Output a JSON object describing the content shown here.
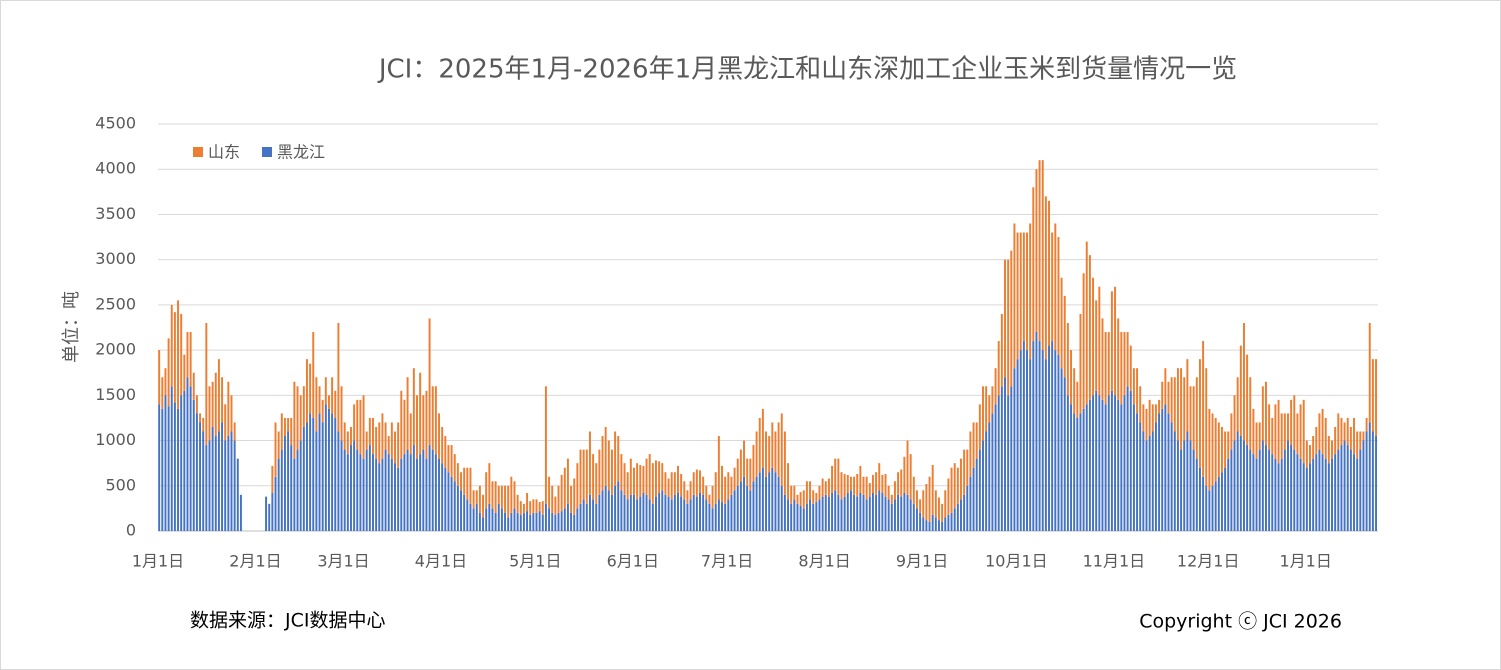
{
  "chart_data": {
    "type": "stacked-bar",
    "title": "JCI：2025年1月-2026年1月黑龙江和山东深加工企业玉米到货量情况一览",
    "y_label": "单位：吨",
    "source": "数据来源：JCI数据中心",
    "copyright": "Copyright ⓒ JCI 2026",
    "ylim": [
      0,
      4500
    ],
    "yticks": [
      0,
      500,
      1000,
      1500,
      2000,
      2500,
      3000,
      3500,
      4000,
      4500
    ],
    "grid": true,
    "legend": "top-left",
    "categories": [
      "1月1日",
      null,
      null,
      null,
      null,
      null,
      null,
      null,
      null,
      null,
      null,
      null,
      null,
      null,
      null,
      null,
      null,
      null,
      null,
      null,
      null,
      null,
      null,
      null,
      null,
      null,
      null,
      null,
      null,
      null,
      null,
      "2月1日",
      null,
      null,
      null,
      null,
      null,
      null,
      null,
      null,
      null,
      null,
      null,
      null,
      null,
      null,
      null,
      null,
      null,
      null,
      null,
      null,
      null,
      null,
      null,
      null,
      null,
      null,
      null,
      "3月1日",
      null,
      null,
      null,
      null,
      null,
      null,
      null,
      null,
      null,
      null,
      null,
      null,
      null,
      null,
      null,
      null,
      null,
      null,
      null,
      null,
      null,
      null,
      null,
      null,
      null,
      null,
      null,
      null,
      null,
      null,
      "4月1日",
      null,
      null,
      null,
      null,
      null,
      null,
      null,
      null,
      null,
      null,
      null,
      null,
      null,
      null,
      null,
      null,
      null,
      null,
      null,
      null,
      null,
      null,
      null,
      null,
      null,
      null,
      null,
      null,
      null,
      "5月1日",
      null,
      null,
      null,
      null,
      null,
      null,
      null,
      null,
      null,
      null,
      null,
      null,
      null,
      null,
      null,
      null,
      null,
      null,
      null,
      null,
      null,
      null,
      null,
      null,
      null,
      null,
      null,
      null,
      null,
      null,
      "6月1日",
      null,
      null,
      null,
      null,
      null,
      null,
      null,
      null,
      null,
      null,
      null,
      null,
      null,
      null,
      null,
      null,
      null,
      null,
      null,
      null,
      null,
      null,
      null,
      null,
      null,
      null,
      null,
      null,
      null,
      "7月1日",
      null,
      null,
      null,
      null,
      null,
      null,
      null,
      null,
      null,
      null,
      null,
      null,
      null,
      null,
      null,
      null,
      null,
      null,
      null,
      null,
      null,
      null,
      null,
      null,
      null,
      null,
      null,
      null,
      null,
      null,
      "8月1日",
      null,
      null,
      null,
      null,
      null,
      null,
      null,
      null,
      null,
      null,
      null,
      null,
      null,
      null,
      null,
      null,
      null,
      null,
      null,
      null,
      null,
      null,
      null,
      null,
      null,
      null,
      null,
      null,
      null,
      null,
      "9月1日",
      null,
      null,
      null,
      null,
      null,
      null,
      null,
      null,
      null,
      null,
      null,
      null,
      null,
      null,
      null,
      null,
      null,
      null,
      null,
      null,
      null,
      null,
      null,
      null,
      null,
      null,
      null,
      null,
      null,
      "10月1日",
      null,
      null,
      null,
      null,
      null,
      null,
      null,
      null,
      null,
      null,
      null,
      null,
      null,
      null,
      null,
      null,
      null,
      null,
      null,
      null,
      null,
      null,
      null,
      null,
      null,
      null,
      null,
      null,
      null,
      null,
      "11月1日",
      null,
      null,
      null,
      null,
      null,
      null,
      null,
      null,
      null,
      null,
      null,
      null,
      null,
      null,
      null,
      null,
      null,
      null,
      null,
      null,
      null,
      null,
      null,
      null,
      null,
      null,
      null,
      null,
      null,
      "12月1日",
      null,
      null,
      null,
      null,
      null,
      null,
      null,
      null,
      null,
      null,
      null,
      null,
      null,
      null,
      null,
      null,
      null,
      null,
      null,
      null,
      null,
      null,
      null,
      null,
      null,
      null,
      null,
      null,
      null,
      null,
      "1月1日",
      null,
      null,
      null,
      null,
      null,
      null,
      null,
      null,
      null,
      null,
      null,
      null,
      null,
      null,
      null,
      null,
      null,
      null,
      null,
      null,
      null,
      null
    ],
    "series": [
      {
        "name": "黑龙江",
        "color": "#4472c4",
        "values": [
          1400,
          1350,
          1500,
          1380,
          1600,
          1420,
          1350,
          1500,
          1550,
          1700,
          1600,
          1450,
          1300,
          1200,
          1100,
          950,
          1000,
          1150,
          1050,
          1100,
          1200,
          1000,
          1050,
          1100,
          1000,
          800,
          400,
          0,
          0,
          0,
          0,
          0,
          0,
          0,
          380,
          300,
          420,
          600,
          800,
          900,
          1050,
          1100,
          950,
          800,
          900,
          1000,
          1150,
          1200,
          1300,
          1250,
          1100,
          1300,
          1200,
          1400,
          1350,
          1300,
          1250,
          1100,
          1000,
          900,
          850,
          950,
          1000,
          900,
          850,
          800,
          900,
          950,
          850,
          800,
          750,
          800,
          900,
          850,
          800,
          750,
          700,
          800,
          850,
          900,
          850,
          950,
          800,
          850,
          900,
          800,
          950,
          900,
          850,
          800,
          750,
          700,
          650,
          600,
          550,
          500,
          450,
          400,
          350,
          300,
          250,
          300,
          200,
          150,
          250,
          300,
          250,
          200,
          300,
          250,
          200,
          150,
          200,
          250,
          200,
          180,
          200,
          220,
          180,
          200,
          200,
          220,
          180,
          300,
          250,
          200,
          180,
          200,
          220,
          250,
          300,
          200,
          180,
          250,
          300,
          350,
          300,
          400,
          350,
          300,
          400,
          450,
          500,
          450,
          400,
          500,
          550,
          450,
          400,
          350,
          400,
          400,
          350,
          380,
          420,
          400,
          350,
          300,
          380,
          420,
          450,
          400,
          380,
          350,
          400,
          420,
          380,
          350,
          300,
          350,
          400,
          380,
          420,
          400,
          350,
          300,
          250,
          300,
          350,
          320,
          300,
          350,
          400,
          450,
          500,
          550,
          600,
          500,
          450,
          550,
          600,
          650,
          700,
          600,
          650,
          700,
          650,
          600,
          500,
          400,
          350,
          300,
          350,
          300,
          280,
          250,
          300,
          350,
          300,
          320,
          350,
          380,
          400,
          380,
          420,
          450,
          400,
          350,
          380,
          420,
          450,
          400,
          380,
          420,
          400,
          350,
          380,
          420,
          400,
          450,
          420,
          380,
          350,
          300,
          350,
          400,
          380,
          420,
          400,
          350,
          300,
          250,
          200,
          150,
          120,
          100,
          180,
          150,
          120,
          100,
          150,
          180,
          200,
          250,
          300,
          350,
          400,
          500,
          600,
          700,
          800,
          900,
          1000,
          1100,
          1200,
          1300,
          1400,
          1500,
          1600,
          1700,
          1500,
          1600,
          1800,
          1900,
          2000,
          2100,
          2000,
          1900,
          2100,
          2200,
          2100,
          2000,
          1900,
          2050,
          2100,
          2000,
          1950,
          1800,
          1700,
          1500,
          1400,
          1300,
          1250,
          1300,
          1350,
          1400,
          1450,
          1500,
          1550,
          1500,
          1450,
          1400,
          1500,
          1550,
          1500,
          1450,
          1400,
          1500,
          1600,
          1550,
          1400,
          1300,
          1200,
          1100,
          1000,
          1050,
          1100,
          1200,
          1300,
          1350,
          1400,
          1300,
          1200,
          1100,
          1000,
          900,
          1000,
          1100,
          1000,
          900,
          800,
          700,
          600,
          500,
          450,
          500,
          550,
          600,
          650,
          700,
          800,
          900,
          1000,
          1100,
          1050,
          1000,
          950,
          900,
          850,
          800,
          900,
          1000,
          950,
          900,
          850,
          800,
          750,
          800,
          900,
          1000,
          950,
          900,
          850,
          800,
          750,
          700,
          750,
          800,
          850,
          900,
          850,
          800,
          750,
          800,
          850,
          900,
          950,
          1000,
          950,
          900,
          850,
          800,
          900,
          1000,
          1100,
          1200,
          1100,
          1050
        ]
      },
      {
        "name": "山东",
        "color": "#ed7d31",
        "values": [
          600,
          350,
          300,
          750,
          900,
          1000,
          1200,
          900,
          400,
          500,
          600,
          300,
          200,
          100,
          150,
          1350,
          600,
          500,
          700,
          800,
          500,
          400,
          600,
          400,
          200,
          0,
          0,
          0,
          0,
          0,
          0,
          0,
          0,
          0,
          0,
          0,
          300,
          600,
          300,
          400,
          200,
          150,
          300,
          850,
          700,
          500,
          450,
          700,
          550,
          950,
          600,
          300,
          250,
          300,
          150,
          400,
          300,
          1200,
          600,
          300,
          250,
          200,
          400,
          550,
          600,
          700,
          200,
          300,
          400,
          350,
          450,
          500,
          300,
          200,
          400,
          350,
          500,
          750,
          600,
          800,
          450,
          850,
          700,
          900,
          600,
          750,
          1400,
          700,
          750,
          500,
          400,
          350,
          300,
          350,
          300,
          250,
          200,
          300,
          350,
          400,
          200,
          150,
          300,
          250,
          400,
          450,
          300,
          350,
          200,
          250,
          300,
          350,
          400,
          300,
          200,
          150,
          100,
          200,
          150,
          150,
          150,
          100,
          150,
          1300,
          350,
          300,
          200,
          300,
          400,
          450,
          500,
          300,
          400,
          500,
          600,
          550,
          600,
          700,
          500,
          450,
          500,
          600,
          650,
          550,
          500,
          600,
          500,
          400,
          350,
          300,
          400,
          300,
          400,
          350,
          300,
          400,
          500,
          450,
          400,
          350,
          300,
          250,
          200,
          300,
          250,
          300,
          250,
          200,
          150,
          200,
          250,
          300,
          250,
          200,
          150,
          100,
          250,
          350,
          700,
          400,
          300,
          300,
          200,
          250,
          300,
          350,
          400,
          300,
          350,
          400,
          500,
          600,
          650,
          500,
          400,
          500,
          450,
          600,
          800,
          700,
          400,
          200,
          150,
          100,
          150,
          200,
          250,
          200,
          150,
          100,
          150,
          200,
          150,
          200,
          300,
          350,
          400,
          300,
          250,
          200,
          150,
          200,
          250,
          300,
          200,
          250,
          150,
          200,
          250,
          300,
          200,
          250,
          150,
          100,
          200,
          250,
          300,
          400,
          600,
          500,
          300,
          200,
          150,
          300,
          400,
          500,
          550,
          300,
          250,
          200,
          300,
          400,
          500,
          500,
          400,
          450,
          500,
          400,
          500,
          500,
          400,
          500,
          600,
          500,
          300,
          300,
          400,
          600,
          800,
          1300,
          1500,
          1500,
          1600,
          1400,
          1300,
          1200,
          1300,
          1500,
          1700,
          1800,
          2000,
          2100,
          1800,
          1600,
          1200,
          1400,
          1300,
          1000,
          900,
          800,
          600,
          500,
          400,
          1100,
          1500,
          1800,
          1600,
          1300,
          1000,
          1200,
          900,
          800,
          700,
          1100,
          1200,
          900,
          800,
          700,
          600,
          500,
          400,
          500,
          400,
          300,
          350,
          400,
          300,
          200,
          150,
          300,
          400,
          350,
          500,
          600,
          800,
          900,
          700,
          800,
          600,
          700,
          900,
          1200,
          1500,
          1300,
          900,
          800,
          700,
          600,
          500,
          400,
          300,
          400,
          500,
          600,
          1000,
          1300,
          1000,
          800,
          500,
          400,
          300,
          600,
          700,
          500,
          400,
          600,
          700,
          500,
          400,
          300,
          500,
          600,
          450,
          600,
          700,
          300,
          200,
          250,
          300,
          400,
          500,
          450,
          300,
          200,
          300,
          400,
          300,
          200,
          300,
          250,
          400,
          300,
          200,
          100,
          150,
          1100,
          800,
          850
        ]
      }
    ]
  }
}
